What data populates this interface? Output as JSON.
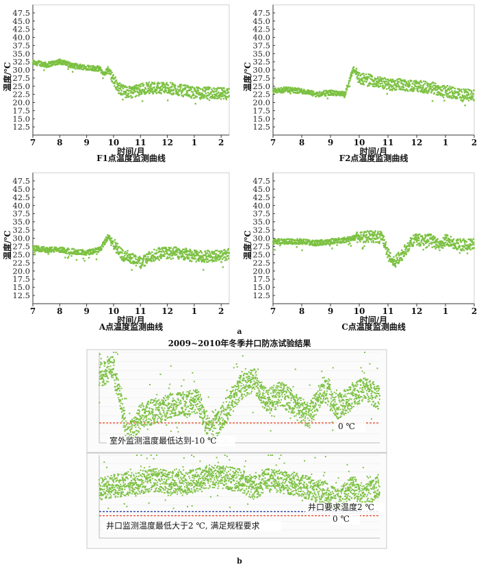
{
  "panel_a_label": "a",
  "panel_b_label": "b",
  "chart_data": [
    {
      "type": "scatter",
      "title": "F1点温度监测曲线",
      "xlabel": "时间/月",
      "ylabel": "温度/℃",
      "xticks": [
        "7",
        "8",
        "9",
        "10",
        "11",
        "12",
        "1",
        "2"
      ],
      "xlim": [
        7,
        14.3
      ],
      "ylim": [
        10,
        50
      ],
      "yticks": [
        12.5,
        15.0,
        17.5,
        20.0,
        22.5,
        25.0,
        27.5,
        30.0,
        32.5,
        35.0,
        37.5,
        40.0,
        42.5,
        45.0,
        47.5
      ],
      "color": "#7cc142",
      "profile": [
        [
          7.0,
          32.3
        ],
        [
          7.3,
          32.0
        ],
        [
          7.5,
          31.5
        ],
        [
          7.8,
          32.2
        ],
        [
          8.0,
          32.6
        ],
        [
          8.3,
          31.8
        ],
        [
          8.5,
          31.2
        ],
        [
          8.8,
          31.0
        ],
        [
          9.0,
          30.8
        ],
        [
          9.3,
          30.5
        ],
        [
          9.5,
          30.3
        ],
        [
          9.65,
          28.5
        ],
        [
          9.8,
          30.5
        ],
        [
          10.0,
          27.0
        ],
        [
          10.2,
          24.5
        ],
        [
          10.5,
          23.0
        ],
        [
          10.8,
          23.5
        ],
        [
          11.0,
          24.0
        ],
        [
          11.3,
          24.5
        ],
        [
          11.7,
          24.5
        ],
        [
          12.0,
          24.5
        ],
        [
          12.3,
          24.0
        ],
        [
          12.7,
          23.5
        ],
        [
          13.0,
          23.0
        ],
        [
          13.3,
          22.8
        ],
        [
          13.6,
          23.0
        ],
        [
          14.0,
          22.8
        ],
        [
          14.3,
          22.5
        ]
      ]
    },
    {
      "type": "scatter",
      "title": "F2点温度监测曲线",
      "xlabel": "时间/月",
      "ylabel": "温度/℃",
      "xticks": [
        "7",
        "8",
        "9",
        "10",
        "11",
        "12",
        "1",
        "2"
      ],
      "xlim": [
        7,
        14.0
      ],
      "ylim": [
        10,
        50
      ],
      "yticks": [
        12.5,
        15.0,
        17.5,
        20.0,
        22.5,
        25.0,
        27.5,
        30.0,
        32.5,
        35.0,
        37.5,
        40.0,
        42.5,
        45.0,
        47.5
      ],
      "color": "#7cc142",
      "profile": [
        [
          7.0,
          23.5
        ],
        [
          7.5,
          24.0
        ],
        [
          8.0,
          23.5
        ],
        [
          8.5,
          22.5
        ],
        [
          9.0,
          23.0
        ],
        [
          9.5,
          22.5
        ],
        [
          9.7,
          28.0
        ],
        [
          9.8,
          30.5
        ],
        [
          10.0,
          27.5
        ],
        [
          10.3,
          27.0
        ],
        [
          10.6,
          26.5
        ],
        [
          11.0,
          25.5
        ],
        [
          11.5,
          25.5
        ],
        [
          12.0,
          25.0
        ],
        [
          12.5,
          24.5
        ],
        [
          13.0,
          23.5
        ],
        [
          13.5,
          22.5
        ],
        [
          14.0,
          22.0
        ]
      ]
    },
    {
      "type": "scatter",
      "title": "A点温度监测曲线",
      "xlabel": "时间/月",
      "ylabel": "温度/℃",
      "xticks": [
        "7",
        "8",
        "9",
        "10",
        "11",
        "12",
        "1",
        "2"
      ],
      "xlim": [
        7,
        14.3
      ],
      "ylim": [
        10,
        50
      ],
      "yticks": [
        12.5,
        15.0,
        17.5,
        20.0,
        22.5,
        25.0,
        27.5,
        30.0,
        32.5,
        35.0,
        37.5,
        40.0,
        42.5,
        45.0,
        47.5
      ],
      "color": "#7cc142",
      "profile": [
        [
          7.0,
          27.0
        ],
        [
          7.5,
          26.5
        ],
        [
          8.0,
          26.5
        ],
        [
          8.5,
          26.0
        ],
        [
          9.0,
          25.5
        ],
        [
          9.5,
          26.5
        ],
        [
          9.8,
          30.5
        ],
        [
          10.0,
          28.5
        ],
        [
          10.3,
          25.0
        ],
        [
          10.7,
          24.0
        ],
        [
          11.0,
          22.5
        ],
        [
          11.3,
          24.0
        ],
        [
          11.7,
          25.5
        ],
        [
          12.0,
          25.5
        ],
        [
          12.5,
          25.5
        ],
        [
          13.0,
          24.5
        ],
        [
          13.5,
          24.5
        ],
        [
          14.0,
          24.5
        ],
        [
          14.3,
          25.0
        ]
      ]
    },
    {
      "type": "scatter",
      "title": "C点温度监测曲线",
      "xlabel": "时间/月",
      "ylabel": "温度/℃",
      "xticks": [
        "7",
        "8",
        "9",
        "10",
        "11",
        "12",
        "1",
        "2"
      ],
      "xlim": [
        7,
        14.0
      ],
      "ylim": [
        10,
        50
      ],
      "yticks": [
        12.5,
        15.0,
        17.5,
        20.0,
        22.5,
        25.0,
        27.5,
        30.0,
        32.5,
        35.0,
        37.5,
        40.0,
        42.5,
        45.0,
        47.5
      ],
      "color": "#7cc142",
      "profile": [
        [
          7.0,
          29.0
        ],
        [
          7.5,
          29.0
        ],
        [
          8.0,
          29.0
        ],
        [
          8.5,
          28.5
        ],
        [
          9.0,
          29.0
        ],
        [
          9.5,
          29.5
        ],
        [
          10.0,
          30.5
        ],
        [
          10.5,
          30.5
        ],
        [
          10.8,
          30.5
        ],
        [
          11.0,
          25.0
        ],
        [
          11.2,
          22.5
        ],
        [
          11.5,
          25.0
        ],
        [
          11.8,
          29.0
        ],
        [
          12.0,
          29.5
        ],
        [
          12.5,
          29.5
        ],
        [
          12.8,
          27.5
        ],
        [
          13.0,
          29.5
        ],
        [
          13.5,
          28.0
        ],
        [
          14.0,
          28.0
        ]
      ]
    },
    {
      "type": "scatter",
      "title": "2009~2010年冬季井口防冻试验结果",
      "color": "#7cc142",
      "annotations": [
        "室外监测温度最低达到-10 ℃",
        "0 ℃"
      ],
      "reference_lines": [
        {
          "label": "0 ℃",
          "color": "#e34a2a"
        }
      ],
      "profile_fraction": [
        [
          0.0,
          0.25
        ],
        [
          0.05,
          0.18
        ],
        [
          0.08,
          0.6
        ],
        [
          0.1,
          0.95
        ],
        [
          0.15,
          0.7
        ],
        [
          0.25,
          0.6
        ],
        [
          0.35,
          0.55
        ],
        [
          0.4,
          0.9
        ],
        [
          0.5,
          0.4
        ],
        [
          0.55,
          0.3
        ],
        [
          0.6,
          0.55
        ],
        [
          0.65,
          0.45
        ],
        [
          0.7,
          0.6
        ],
        [
          0.75,
          0.7
        ],
        [
          0.8,
          0.4
        ],
        [
          0.85,
          0.6
        ],
        [
          0.9,
          0.5
        ],
        [
          0.95,
          0.4
        ],
        [
          1.0,
          0.5
        ]
      ]
    },
    {
      "type": "scatter",
      "color": "#7cc142",
      "annotations": [
        "井口要求温度2 ℃",
        "井口监测温度最低大于2 ℃, 满足规程要求",
        "0 ℃"
      ],
      "reference_lines": [
        {
          "label": "井口要求温度2 ℃",
          "color": "#2a3fa0"
        },
        {
          "label": "0 ℃",
          "color": "#e34a2a"
        }
      ],
      "profile_fraction": [
        [
          0.0,
          0.4
        ],
        [
          0.1,
          0.35
        ],
        [
          0.2,
          0.3
        ],
        [
          0.3,
          0.35
        ],
        [
          0.4,
          0.25
        ],
        [
          0.5,
          0.3
        ],
        [
          0.55,
          0.4
        ],
        [
          0.6,
          0.3
        ],
        [
          0.7,
          0.35
        ],
        [
          0.8,
          0.45
        ],
        [
          0.85,
          0.55
        ],
        [
          0.9,
          0.4
        ],
        [
          0.95,
          0.5
        ],
        [
          1.0,
          0.35
        ]
      ]
    }
  ]
}
